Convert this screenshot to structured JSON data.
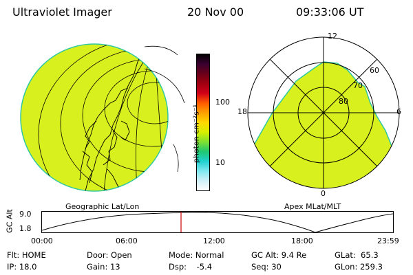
{
  "header": {
    "title": "Ultraviolet Imager",
    "date": "20 Nov 00",
    "time": "09:33:06 UT"
  },
  "geo_panel": {
    "label": "Geographic Lat/Lon"
  },
  "colorbar": {
    "unit_label": "photon cm⁻²s⁻¹",
    "ticks": [
      "100",
      "10"
    ],
    "colors": [
      "#000000",
      "#3a0030",
      "#6a0018",
      "#a00010",
      "#d00018",
      "#ff5a00",
      "#ffa000",
      "#ffd800",
      "#d8f000",
      "#80e030",
      "#20c870",
      "#20d0d0",
      "#80e8f0",
      "#d0f0f8",
      "#ffffff"
    ],
    "scale": "log"
  },
  "polar_panel": {
    "label": "Apex MLat/MLT",
    "mlt_labels": [
      "12",
      "18",
      "6",
      "0"
    ],
    "lat_labels": [
      "60",
      "70",
      "80"
    ]
  },
  "altitude_plot": {
    "ylabel": "GC Alt",
    "yticks": [
      "9.0",
      "1.8"
    ],
    "xticks": [
      "00:00",
      "06:00",
      "12:00",
      "18:00",
      "23:59"
    ],
    "marker_color": "#cc0000"
  },
  "status": {
    "flt": "Flt: HOME",
    "ip": "IP: 18.0",
    "door": "Door: Open",
    "gain": "Gain: 13",
    "mode": "Mode: Normal",
    "dsp": "Dsp:    -5.4",
    "gcalt": "GC Alt: 9.4 Re",
    "seq": "Seq: 30",
    "glat": "GLat:  65.3",
    "glon": "GLon: 259.3"
  },
  "colors": {
    "emission": "#d8f01e",
    "edge": "#30c8a0",
    "grid": "#000000"
  }
}
